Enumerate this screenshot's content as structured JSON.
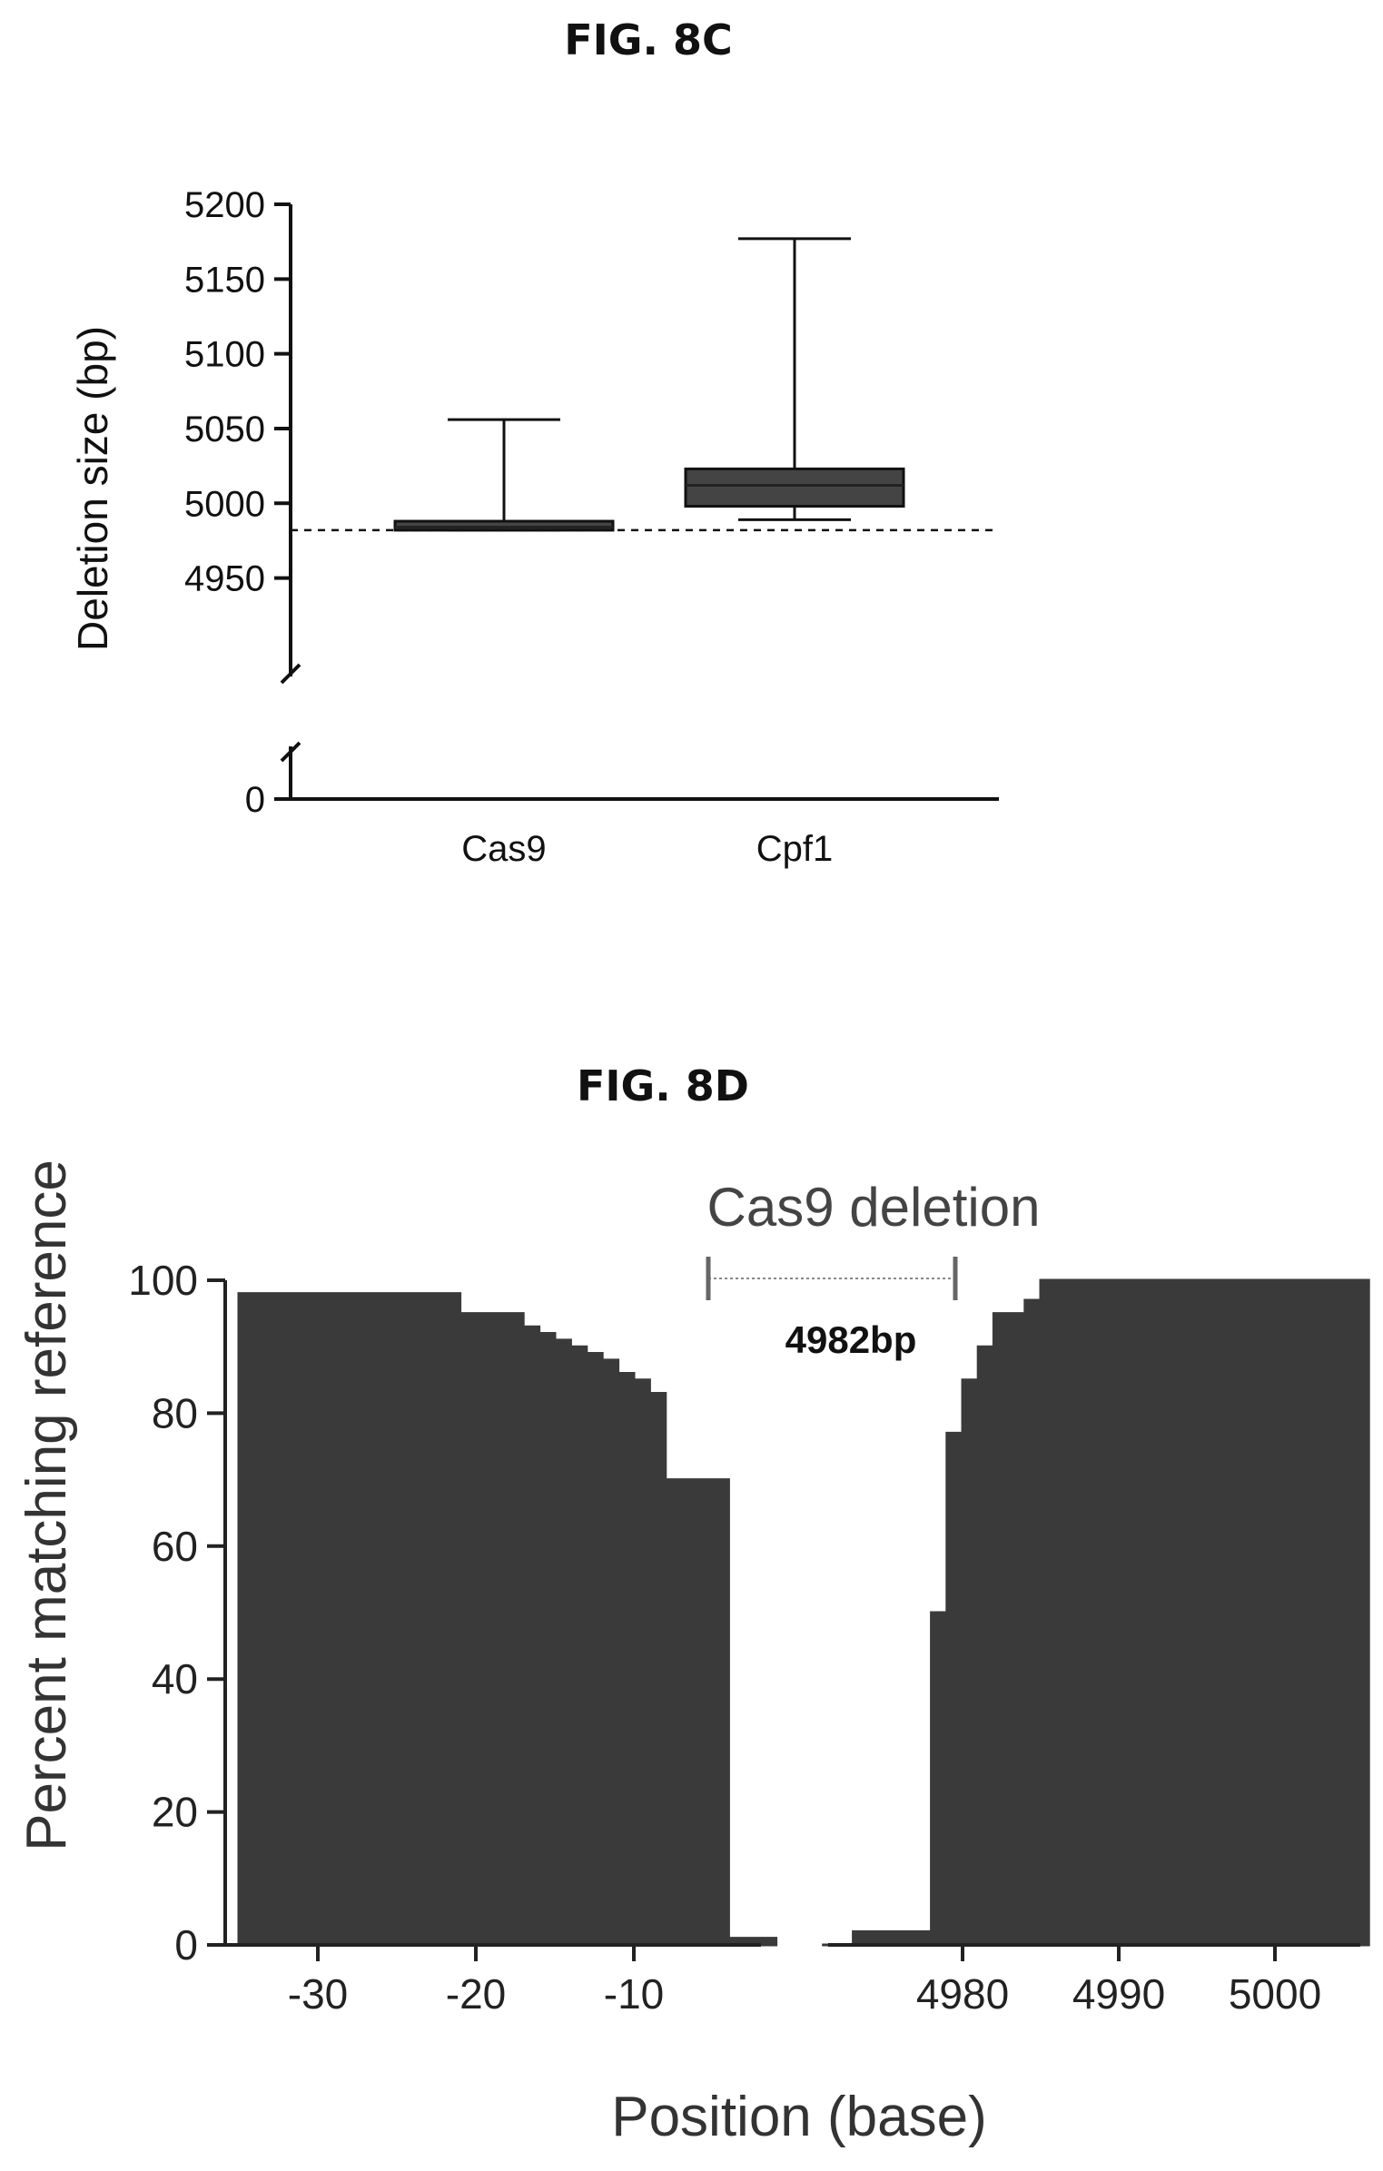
{
  "chart_data": [
    {
      "id": "fig8c",
      "type": "box",
      "title": "FIG. 8C",
      "xlabel": "",
      "ylabel": "Deletion size (bp)",
      "categories": [
        "Cas9",
        "Cpf1"
      ],
      "y_ticks": [
        "0",
        "4950",
        "5000",
        "5050",
        "5100",
        "5150",
        "5200"
      ],
      "y_axis_break": [
        0,
        4920
      ],
      "ylim": [
        4920,
        5200
      ],
      "reference_line": 4982,
      "boxes": [
        {
          "name": "Cas9",
          "min": 4982,
          "q1": 4982,
          "median": 4984,
          "q3": 4988,
          "max": 5056
        },
        {
          "name": "Cpf1",
          "min": 4989,
          "q1": 4998,
          "median": 5012,
          "q3": 5023,
          "max": 5177
        }
      ]
    },
    {
      "id": "fig8d",
      "type": "area",
      "title": "FIG. 8D",
      "xlabel": "Position (base)",
      "ylabel": "Percent matching reference",
      "ylim": [
        0,
        100
      ],
      "y_ticks": [
        "0",
        "20",
        "40",
        "60",
        "80",
        "100"
      ],
      "x_ticks_left": [
        "-30",
        "-20",
        "-10"
      ],
      "x_ticks_right": [
        "4980",
        "4990",
        "5000"
      ],
      "annotation": {
        "label": "Cas9 deletion",
        "size_label": "4982bp"
      },
      "left_segment": {
        "x": [
          -35,
          -22,
          -21,
          -19,
          -17,
          -16,
          -15,
          -14,
          -13,
          -12,
          -11,
          -10,
          -9,
          -8,
          -5,
          -4,
          -1
        ],
        "y": [
          98,
          98,
          95,
          95,
          93,
          92,
          91,
          90,
          89,
          88,
          86,
          85,
          83,
          70,
          70,
          1,
          0
        ]
      },
      "right_segment": {
        "x": [
          4971,
          4972,
          4973,
          4977,
          4978,
          4979,
          4980,
          4981,
          4982,
          4983,
          4984,
          4985,
          5006
        ],
        "y": [
          0,
          0,
          2,
          2,
          50,
          77,
          85,
          90,
          95,
          95,
          97,
          100,
          100
        ]
      }
    }
  ]
}
